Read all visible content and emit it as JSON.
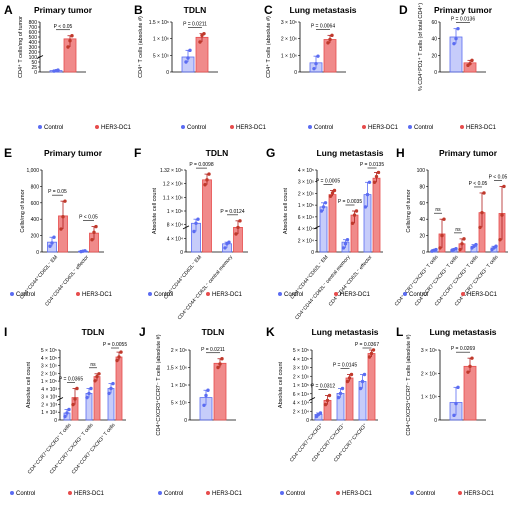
{
  "colors": {
    "control": "#5b6cf2",
    "her3": "#e74c4c",
    "her3_fill": "#f08a8a",
    "axis": "#000000"
  },
  "legend": {
    "control": "Control",
    "her3": "HER3-DC1"
  },
  "chart_data": [
    {
      "panel": "A",
      "type": "bar",
      "title": "Primary tumor",
      "ylabel": "CD4⁺ T cells/mg of tumor",
      "yticks": [
        "0",
        "25",
        "50",
        "100",
        "200",
        "300",
        "400",
        "500",
        "600",
        "700",
        "800"
      ],
      "ylim": [
        0,
        800
      ],
      "broken_axis": true,
      "categories": [
        ""
      ],
      "series": [
        {
          "name": "Control",
          "values": [
            22
          ],
          "points": [
            [
              15,
              20,
              30
            ]
          ]
        },
        {
          "name": "HER3-DC1",
          "values": [
            530
          ],
          "points": [
            [
              400,
              500,
              580
            ]
          ]
        }
      ],
      "comparisons": [
        {
          "label": "P < 0.05"
        }
      ]
    },
    {
      "panel": "B",
      "type": "bar",
      "title": "TDLN",
      "ylabel": "CD4⁺ T cells (absolute #)",
      "yticks": [
        "0",
        "5 × 10⁵",
        "1 × 10⁶",
        "1.5 × 10⁶"
      ],
      "ylim": [
        0,
        1500000
      ],
      "categories": [
        ""
      ],
      "series": [
        {
          "name": "Control",
          "values": [
            450000
          ],
          "points": [
            [
              300000,
              420000,
              650000
            ]
          ]
        },
        {
          "name": "HER3-DC1",
          "values": [
            1040000
          ],
          "points": [
            [
              900000,
              1100000,
              1150000
            ]
          ]
        }
      ],
      "comparisons": [
        {
          "label": "P = 0.0211"
        }
      ]
    },
    {
      "panel": "C",
      "type": "bar",
      "title": "Lung metastasis",
      "ylabel": "CD4⁺ T cells (absolute #)",
      "yticks": [
        "0",
        "1 × 10⁶",
        "2 × 10⁶",
        "3 × 10⁶"
      ],
      "ylim": [
        0,
        3000000
      ],
      "categories": [
        ""
      ],
      "series": [
        {
          "name": "Control",
          "values": [
            550000
          ],
          "points": [
            [
              200000,
              500000,
              950000
            ]
          ]
        },
        {
          "name": "HER3-DC1",
          "values": [
            1950000
          ],
          "points": [
            [
              1750000,
              1950000,
              2200000
            ]
          ]
        }
      ],
      "comparisons": [
        {
          "label": "P = 0.0064"
        }
      ]
    },
    {
      "panel": "D",
      "type": "bar",
      "title": "Primary tumor",
      "ylabel": "% CD4⁺PD1⁺ T cells (of total CD4⁺)",
      "yticks": [
        "0",
        "20",
        "40",
        "60"
      ],
      "ylim": [
        0,
        60
      ],
      "categories": [
        ""
      ],
      "series": [
        {
          "name": "Control",
          "values": [
            42
          ],
          "points": [
            [
              34,
              40,
              52
            ]
          ]
        },
        {
          "name": "HER3-DC1",
          "values": [
            11
          ],
          "points": [
            [
              8,
              10,
              14
            ]
          ]
        }
      ],
      "comparisons": [
        {
          "label": "P = 0.0136"
        }
      ]
    },
    {
      "panel": "E",
      "type": "bar",
      "title": "Primary tumor",
      "ylabel": "Cells/mg of tumor",
      "yticks": [
        "0",
        "200",
        "400",
        "600",
        "800",
        "1,000"
      ],
      "ylim": [
        0,
        1000
      ],
      "categories": [
        "CD4⁺CD44⁺CD62L⁻ EM",
        "CD4⁺CD44⁻CD62L⁻ effector"
      ],
      "series": [
        {
          "name": "Control",
          "values": [
            120,
            10
          ],
          "points": [
            [
              70,
              110,
              180
            ],
            [
              5,
              10,
              15
            ]
          ]
        },
        {
          "name": "HER3-DC1",
          "values": [
            440,
            230
          ],
          "points": [
            [
              280,
              430,
              620
            ],
            [
              150,
              240,
              310
            ]
          ]
        }
      ],
      "comparisons": [
        {
          "label": "P = 0.05"
        },
        {
          "label": "P < 0.05"
        }
      ]
    },
    {
      "panel": "F",
      "type": "bar",
      "title": "TDLN",
      "ylabel": "Absolute cell count",
      "yticks": [
        "0",
        "4 × 10⁴",
        "8 × 10⁴",
        "1 × 10⁶",
        "1.1 × 10⁶",
        "1.2 × 10⁶",
        "1.32 × 10⁶"
      ],
      "ylim": [
        0,
        1320000
      ],
      "broken_axis": true,
      "categories": [
        "CD4⁺CD44⁺CD62L⁻ EM",
        "CD4⁺CD44⁻CD62L⁻ central memory"
      ],
      "series": [
        {
          "name": "Control",
          "values": [
            0.35,
            0.1
          ],
          "points": [
            [
              0.25,
              0.35,
              0.4
            ],
            [
              0.05,
              0.1,
              0.12
            ]
          ]
        },
        {
          "name": "HER3-DC1",
          "values": [
            0.88,
            0.3
          ],
          "points": [
            [
              0.82,
              0.88,
              0.95
            ],
            [
              0.22,
              0.3,
              0.38
            ]
          ]
        }
      ],
      "comparisons": [
        {
          "label": "P = 0.0098"
        },
        {
          "label": "P = 0.0124"
        }
      ]
    },
    {
      "panel": "G",
      "type": "bar",
      "title": "Lung metastasis",
      "ylabel": "Absolute cell count",
      "yticks": [
        "0",
        "2 × 10⁴",
        "4 × 10⁴",
        "6 × 10⁴",
        "1 × 10⁵",
        "2 × 10⁵",
        "3 × 10⁵",
        "4 × 10⁵"
      ],
      "ylim": [
        0,
        400000
      ],
      "broken_axis": true,
      "categories": [
        "CD4⁺CD44⁺CD62L⁻ EM",
        "CD4⁺CD44⁻CD62L⁻ central memory",
        "CD4⁺CD44⁻CD62L⁻ effector"
      ],
      "series": [
        {
          "name": "Control",
          "values": [
            0.55,
            0.12,
            0.7
          ],
          "points": [
            [
              0.5,
              0.55,
              0.6
            ],
            [
              0.05,
              0.1,
              0.15
            ],
            [
              0.55,
              0.7,
              0.85
            ]
          ]
        },
        {
          "name": "HER3-DC1",
          "values": [
            0.7,
            0.45,
            0.9
          ],
          "points": [
            [
              0.68,
              0.72,
              0.75
            ],
            [
              0.35,
              0.45,
              0.5
            ],
            [
              0.85,
              0.92,
              0.97
            ]
          ]
        }
      ],
      "comparisons": [
        {
          "label": "P = 0.0005"
        },
        {
          "label": "P = 0.0035"
        },
        {
          "label": "P = 0.0135"
        }
      ]
    },
    {
      "panel": "H",
      "type": "bar",
      "title": "Primary tumor",
      "ylabel": "Cells/mg of tumor",
      "yticks": [
        "0",
        "20",
        "40",
        "60",
        "80",
        "100"
      ],
      "ylim": [
        0,
        100
      ],
      "categories": [
        "CD4⁺CCR7⁺CXCR3⁺ T cells",
        "CD4⁺CCR7⁺CXCR3⁻ T cells",
        "CD4⁺CCR7⁻CXCR3⁺ T cells",
        "CD4⁺CCR7⁻CXCR3⁻ T cells"
      ],
      "series": [
        {
          "name": "Control",
          "values": [
            2,
            3,
            7,
            5
          ],
          "points": [
            [
              1,
              2,
              3
            ],
            [
              2,
              3,
              4
            ],
            [
              5,
              7,
              9
            ],
            [
              3,
              5,
              7
            ]
          ]
        },
        {
          "name": "HER3-DC1",
          "values": [
            22,
            10,
            48,
            47
          ],
          "points": [
            [
              5,
              20,
              40
            ],
            [
              3,
              10,
              16
            ],
            [
              30,
              48,
              72
            ],
            [
              15,
              45,
              80
            ]
          ]
        }
      ],
      "comparisons": [
        {
          "label": "ns"
        },
        {
          "label": "ns"
        },
        {
          "label": "P < 0.05"
        },
        {
          "label": "P < 0.05"
        }
      ]
    },
    {
      "panel": "I",
      "type": "bar",
      "title": "TDLN",
      "ylabel": "Absolute cell count",
      "yticks": [
        "0",
        "1 × 10³",
        "2 × 10³",
        "3 × 10³",
        "4 × 10³",
        "1 × 10⁵",
        "2 × 10⁵",
        "3 × 10⁵",
        "4 × 10⁵",
        "5 × 10⁵"
      ],
      "ylim": [
        0,
        500000
      ],
      "broken_axis": true,
      "categories": [
        "CD4⁺CCR7⁺CXCR3⁺ T cells",
        "CD4⁺CCR7⁺CXCR3⁻ T cells",
        "CD4⁺CCR7⁻CXCR3⁺ T cells"
      ],
      "series": [
        {
          "name": "Control",
          "values": [
            0.1,
            0.38,
            0.45
          ],
          "points": [
            [
              0.05,
              0.1,
              0.15
            ],
            [
              0.32,
              0.38,
              0.45
            ],
            [
              0.38,
              0.45,
              0.52
            ]
          ]
        },
        {
          "name": "HER3-DC1",
          "values": [
            0.32,
            0.62,
            0.9
          ],
          "points": [
            [
              0.22,
              0.3,
              0.45
            ],
            [
              0.56,
              0.62,
              0.66
            ],
            [
              0.85,
              0.9,
              0.97
            ]
          ]
        }
      ],
      "comparisons": [
        {
          "label": "P = 0.0365"
        },
        {
          "label": "ns"
        },
        {
          "label": "P = 0.0055"
        }
      ]
    },
    {
      "panel": "J",
      "type": "bar",
      "title": "TDLN",
      "ylabel": "CD4⁺CXCR3⁺CCR7⁻ T cells (absolute #)",
      "yticks": [
        "0",
        "5 × 10⁵",
        "1 × 10⁶",
        "1.5 × 10⁶",
        "2 × 10⁶"
      ],
      "ylim": [
        0,
        2000000
      ],
      "categories": [
        ""
      ],
      "series": [
        {
          "name": "Control",
          "values": [
            640000
          ],
          "points": [
            [
              420000,
              700000,
              850000
            ]
          ]
        },
        {
          "name": "HER3-DC1",
          "values": [
            1620000
          ],
          "points": [
            [
              1500000,
              1600000,
              1750000
            ]
          ]
        }
      ],
      "comparisons": [
        {
          "label": "P = 0.0211"
        }
      ]
    },
    {
      "panel": "K",
      "type": "bar",
      "title": "Lung metastasis",
      "ylabel": "Absolute cell count",
      "yticks": [
        "0",
        "2 × 10⁴",
        "4 × 10⁴",
        "6 × 10⁴",
        "1 × 10⁵",
        "2 × 10⁵",
        "3 × 10⁵",
        "4 × 10⁵",
        "5 × 10⁵"
      ],
      "ylim": [
        0,
        500000
      ],
      "broken_axis": true,
      "categories": [
        "CD4⁺CCR7⁺CXCR3⁺",
        "CD4⁺CCR7⁺CXCR3⁻",
        "CD4⁺CCR7⁻CXCR3⁺"
      ],
      "series": [
        {
          "name": "Control",
          "values": [
            0.08,
            0.38,
            0.55
          ],
          "points": [
            [
              0.05,
              0.08,
              0.1
            ],
            [
              0.32,
              0.38,
              0.45
            ],
            [
              0.45,
              0.55,
              0.65
            ]
          ]
        },
        {
          "name": "HER3-DC1",
          "values": [
            0.28,
            0.6,
            0.95
          ],
          "points": [
            [
              0.22,
              0.28,
              0.35
            ],
            [
              0.55,
              0.6,
              0.65
            ],
            [
              0.9,
              0.95,
              1.0
            ]
          ]
        }
      ],
      "comparisons": [
        {
          "label": "P = 0.0312"
        },
        {
          "label": "P = 0.0145"
        },
        {
          "label": "P = 0.0367"
        }
      ]
    },
    {
      "panel": "L",
      "type": "bar",
      "title": "Lung metastasis",
      "ylabel": "CD4⁺CXCR3⁺CCR7⁻ T cells (absolute #)",
      "yticks": [
        "0",
        "1 × 10⁶",
        "2 × 10⁶",
        "3 × 10⁶"
      ],
      "ylim": [
        0,
        3000000
      ],
      "categories": [
        ""
      ],
      "series": [
        {
          "name": "Control",
          "values": [
            750000
          ],
          "points": [
            [
              200000,
              700000,
              1400000
            ]
          ]
        },
        {
          "name": "HER3-DC1",
          "values": [
            2300000
          ],
          "points": [
            [
              2050000,
              2300000,
              2650000
            ]
          ]
        }
      ],
      "comparisons": [
        {
          "label": "P = 0.0269"
        }
      ]
    }
  ]
}
